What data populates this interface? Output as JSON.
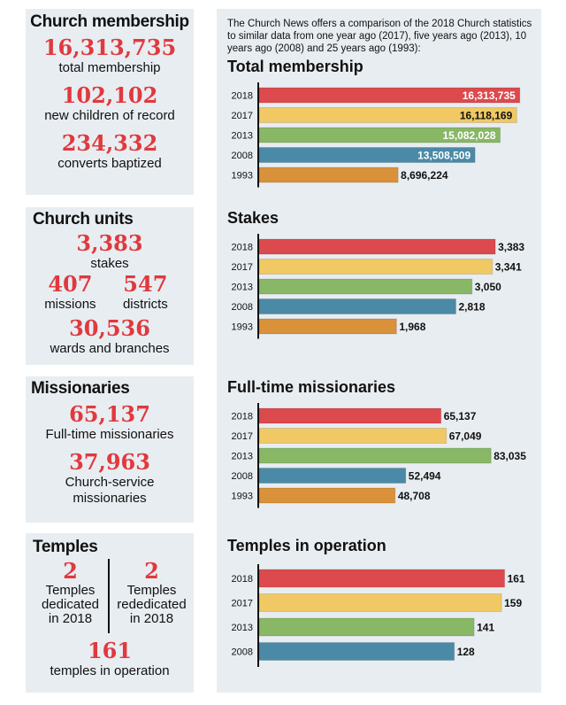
{
  "left": {
    "membership": {
      "title": "Church membership",
      "stats": [
        {
          "value": "16,313,735",
          "label": "total membership"
        },
        {
          "value": "102,102",
          "label": "new children of record"
        },
        {
          "value": "234,332",
          "label": "converts baptized"
        }
      ]
    },
    "units": {
      "title": "Church units",
      "stakes": {
        "value": "3,383",
        "label": "stakes"
      },
      "missions": {
        "value": "407",
        "label": "missions"
      },
      "districts": {
        "value": "547",
        "label": "districts"
      },
      "wards": {
        "value": "30,536",
        "label": "wards and branches"
      }
    },
    "missionaries": {
      "title": "Missionaries",
      "stats": [
        {
          "value": "65,137",
          "label": "Full-time missionaries"
        },
        {
          "value": "37,963",
          "label": "Church-service missionaries"
        }
      ]
    },
    "temples": {
      "title": "Temples",
      "dedicated": {
        "value": "2",
        "label": "Temples dedicated in 2018"
      },
      "rededicated": {
        "value": "2",
        "label": "Temples rededicated in 2018"
      },
      "operation": {
        "value": "161",
        "label": "temples in operation"
      }
    }
  },
  "intro": "The Church News offers a comparison of the 2018 Church statistics to similar data from one year ago (2017), five years ago (2013), 10 years ago (2008) and 25 years ago (1993):",
  "colors": {
    "2018": "#dc4a4e",
    "2017": "#f0c864",
    "2013": "#88b766",
    "2008": "#4a8aa6",
    "1993": "#d9913a",
    "accent": "#e0393e",
    "panel": "#e8edf1"
  },
  "chart_data": [
    {
      "type": "bar",
      "orientation": "horizontal",
      "title": "Total membership",
      "categories": [
        "2018",
        "2017",
        "2013",
        "2008",
        "1993"
      ],
      "values": [
        16313735,
        16118169,
        15082028,
        13508509,
        8696224
      ],
      "labels": [
        "16,313,735",
        "16,118,169",
        "15,082,028",
        "13,508,509",
        "8,696,224"
      ],
      "xlim": [
        0,
        16600000
      ]
    },
    {
      "type": "bar",
      "orientation": "horizontal",
      "title": "Stakes",
      "categories": [
        "2018",
        "2017",
        "2013",
        "2008",
        "1993"
      ],
      "values": [
        3383,
        3341,
        3050,
        2818,
        1968
      ],
      "labels": [
        "3,383",
        "3,341",
        "3,050",
        "2,818",
        "1,968"
      ],
      "xlim": [
        0,
        3800
      ]
    },
    {
      "type": "bar",
      "orientation": "horizontal",
      "title": "Full-time missionaries",
      "categories": [
        "2018",
        "2017",
        "2013",
        "2008",
        "1993"
      ],
      "values": [
        65137,
        67049,
        83035,
        52494,
        48708
      ],
      "labels": [
        "65,137",
        "67,049",
        "83,035",
        "52,494",
        "48,708"
      ],
      "xlim": [
        0,
        95000
      ]
    },
    {
      "type": "bar",
      "orientation": "horizontal",
      "title": "Temples in operation",
      "categories": [
        "2018",
        "2017",
        "2013",
        "2008"
      ],
      "values": [
        161,
        159,
        141,
        128
      ],
      "labels": [
        "161",
        "159",
        "141",
        "128"
      ],
      "xlim": [
        0,
        174
      ]
    }
  ]
}
